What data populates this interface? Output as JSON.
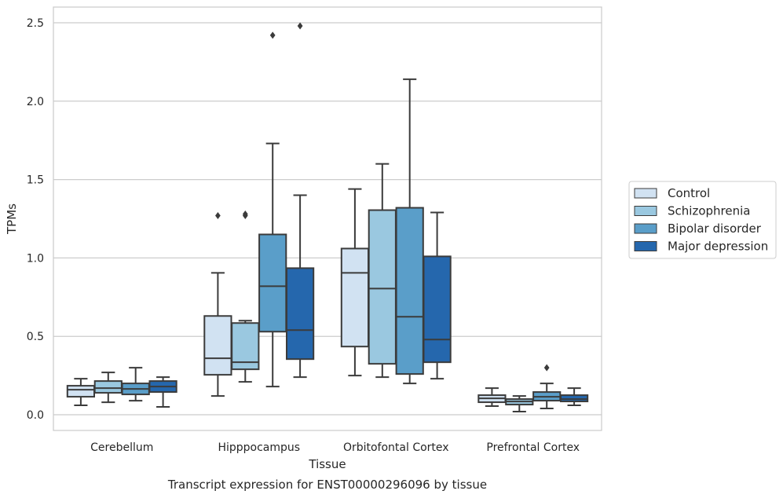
{
  "chart_data": {
    "type": "box",
    "xlabel": "Tissue",
    "ylabel": "TPMs",
    "caption": "Transcript expression for ENST00000296096 by tissue",
    "ylim": [
      -0.1,
      2.6
    ],
    "yticks": [
      0.0,
      0.5,
      1.0,
      1.5,
      2.0,
      2.5
    ],
    "ytick_labels": [
      "0.0",
      "0.5",
      "1.0",
      "1.5",
      "2.0",
      "2.5"
    ],
    "grid": "horizontal",
    "legend_position": "right",
    "categories": [
      "Cerebellum",
      "Hipppocampus",
      "Orbitofontal Cortex",
      "Prefrontal Cortex"
    ],
    "series": [
      {
        "name": "Control",
        "color": "#d1e2f2",
        "boxes": [
          {
            "whislo": 0.06,
            "q1": 0.115,
            "med": 0.16,
            "q3": 0.185,
            "whishi": 0.23,
            "fliers": []
          },
          {
            "whislo": 0.12,
            "q1": 0.255,
            "med": 0.36,
            "q3": 0.63,
            "whishi": 0.905,
            "fliers": [
              1.27
            ]
          },
          {
            "whislo": 0.25,
            "q1": 0.435,
            "med": 0.905,
            "q3": 1.06,
            "whishi": 1.44,
            "fliers": []
          },
          {
            "whislo": 0.055,
            "q1": 0.08,
            "med": 0.105,
            "q3": 0.125,
            "whishi": 0.17,
            "fliers": []
          }
        ]
      },
      {
        "name": "Schizophrenia",
        "color": "#9ac8e0",
        "boxes": [
          {
            "whislo": 0.08,
            "q1": 0.14,
            "med": 0.17,
            "q3": 0.215,
            "whishi": 0.27,
            "fliers": []
          },
          {
            "whislo": 0.21,
            "q1": 0.29,
            "med": 0.335,
            "q3": 0.585,
            "whishi": 0.6,
            "fliers": [
              1.27,
              1.28
            ]
          },
          {
            "whislo": 0.24,
            "q1": 0.325,
            "med": 0.805,
            "q3": 1.305,
            "whishi": 1.6,
            "fliers": []
          },
          {
            "whislo": 0.02,
            "q1": 0.065,
            "med": 0.085,
            "q3": 0.1,
            "whishi": 0.12,
            "fliers": []
          }
        ]
      },
      {
        "name": "Bipolar disorder",
        "color": "#5a9ec9",
        "boxes": [
          {
            "whislo": 0.09,
            "q1": 0.13,
            "med": 0.165,
            "q3": 0.2,
            "whishi": 0.3,
            "fliers": []
          },
          {
            "whislo": 0.18,
            "q1": 0.53,
            "med": 0.82,
            "q3": 1.15,
            "whishi": 1.73,
            "fliers": [
              2.42
            ]
          },
          {
            "whislo": 0.2,
            "q1": 0.26,
            "med": 0.625,
            "q3": 1.32,
            "whishi": 2.14,
            "fliers": []
          },
          {
            "whislo": 0.04,
            "q1": 0.09,
            "med": 0.115,
            "q3": 0.145,
            "whishi": 0.2,
            "fliers": [
              0.3
            ]
          }
        ]
      },
      {
        "name": "Major depression",
        "color": "#2567ad",
        "boxes": [
          {
            "whislo": 0.05,
            "q1": 0.145,
            "med": 0.18,
            "q3": 0.215,
            "whishi": 0.24,
            "fliers": []
          },
          {
            "whislo": 0.24,
            "q1": 0.355,
            "med": 0.54,
            "q3": 0.935,
            "whishi": 1.4,
            "fliers": [
              2.48
            ]
          },
          {
            "whislo": 0.23,
            "q1": 0.335,
            "med": 0.48,
            "q3": 1.01,
            "whishi": 1.29,
            "fliers": []
          },
          {
            "whislo": 0.06,
            "q1": 0.085,
            "med": 0.1,
            "q3": 0.125,
            "whishi": 0.17,
            "fliers": []
          }
        ]
      }
    ]
  }
}
